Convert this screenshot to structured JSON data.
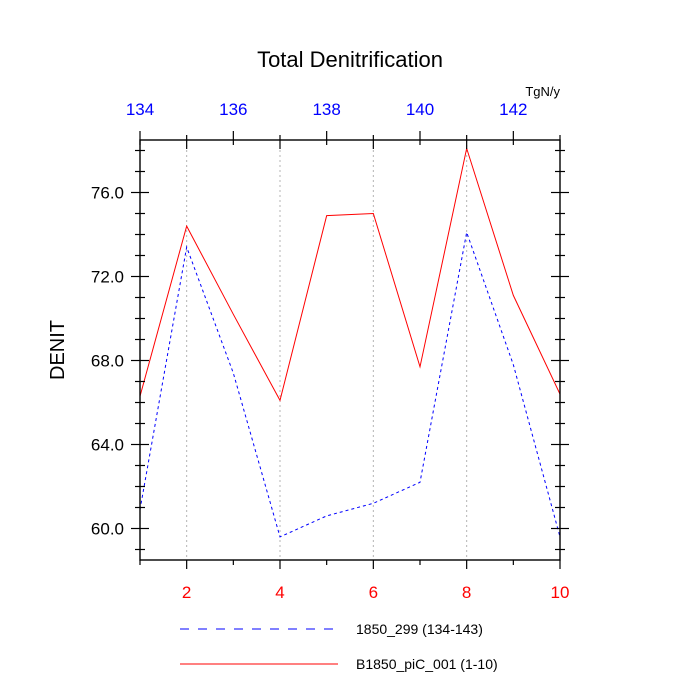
{
  "chart_data": {
    "type": "line",
    "title": "Total Denitrification",
    "units": "TgN/y",
    "ylabel": "DENIT",
    "ylim": [
      58.5,
      78.5
    ],
    "yticks": [
      60,
      64,
      68,
      72,
      76
    ],
    "ytick_labels": [
      "60.0",
      "64.0",
      "68.0",
      "72.0",
      "76.0"
    ],
    "bottom_axis": {
      "range": [
        1,
        10
      ],
      "ticks": [
        2,
        4,
        6,
        8,
        10
      ],
      "tick_labels": [
        "2",
        "4",
        "6",
        "8",
        "10"
      ],
      "label_color": "#ff0000"
    },
    "top_axis": {
      "range": [
        134,
        143
      ],
      "ticks": [
        134,
        136,
        138,
        140,
        142
      ],
      "tick_labels": [
        "134",
        "136",
        "138",
        "140",
        "142"
      ],
      "label_color": "#0000ff"
    },
    "gridlines_x": [
      2,
      4,
      6,
      8
    ],
    "series": [
      {
        "name": "1850_299 (134-143)",
        "color": "#0000ff",
        "style": "dashed",
        "x": [
          1,
          2,
          3,
          4,
          5,
          6,
          7,
          8,
          9,
          10
        ],
        "values": [
          60.9,
          73.4,
          67.4,
          59.6,
          60.6,
          61.2,
          62.2,
          74.1,
          67.8,
          59.6
        ]
      },
      {
        "name": "B1850_piC_001 (1-10)",
        "color": "#ff0000",
        "style": "solid",
        "x": [
          1,
          2,
          3,
          4,
          5,
          6,
          7,
          8,
          9,
          10
        ],
        "values": [
          66.3,
          74.4,
          70.2,
          66.1,
          74.9,
          75.0,
          67.7,
          78.1,
          71.1,
          66.4
        ]
      }
    ]
  }
}
